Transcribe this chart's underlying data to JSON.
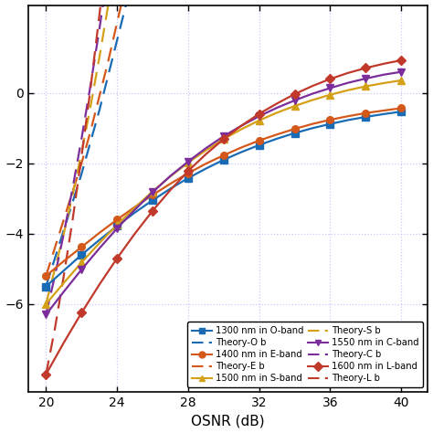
{
  "title": "",
  "xlabel": "OSNR (dB)",
  "ylabel": "",
  "xlim": [
    19.0,
    41.5
  ],
  "ylim": [
    -8.5,
    2.5
  ],
  "xticks": [
    20,
    24,
    28,
    32,
    36,
    40
  ],
  "yticks": [
    -6,
    -4,
    -2,
    0
  ],
  "grid_color": "#c8c8ff",
  "bands": [
    {
      "name": "O-band",
      "wavelength": "1300 nm",
      "color": "#1a6bb5",
      "marker": "s",
      "solid_x": [
        20,
        21,
        22,
        23,
        24,
        25,
        26,
        27,
        28,
        29,
        30,
        31,
        32,
        33,
        34,
        35,
        36,
        37,
        38,
        39,
        40
      ],
      "solid_y": [
        -5.5,
        -5.05,
        -4.6,
        -4.18,
        -3.78,
        -3.4,
        -3.05,
        -2.72,
        -2.42,
        -2.15,
        -1.9,
        -1.68,
        -1.48,
        -1.3,
        -1.14,
        -1.0,
        -0.88,
        -0.77,
        -0.68,
        -0.6,
        -0.53
      ],
      "dashed_x": [
        20,
        20.5,
        21,
        21.5,
        22,
        22.5,
        23,
        23.5,
        24,
        24.5,
        25,
        25.5,
        26,
        26.2
      ],
      "dashed_y": [
        -5.5,
        -4.7,
        -3.9,
        -3.1,
        -2.3,
        -1.4,
        -0.5,
        0.5,
        1.5,
        2.5,
        3.6,
        4.8,
        6.1,
        6.7
      ]
    },
    {
      "name": "E-band",
      "wavelength": "1400 nm",
      "color": "#d4581a",
      "marker": "o",
      "solid_x": [
        20,
        21,
        22,
        23,
        24,
        25,
        26,
        27,
        28,
        29,
        30,
        31,
        32,
        33,
        34,
        35,
        36,
        37,
        38,
        39,
        40
      ],
      "solid_y": [
        -5.2,
        -4.78,
        -4.38,
        -3.98,
        -3.6,
        -3.24,
        -2.9,
        -2.58,
        -2.28,
        -2.01,
        -1.77,
        -1.55,
        -1.35,
        -1.18,
        -1.02,
        -0.88,
        -0.76,
        -0.66,
        -0.57,
        -0.5,
        -0.43
      ],
      "dashed_x": [
        20,
        20.5,
        21,
        21.5,
        22,
        22.5,
        23,
        23.5,
        24,
        24.5,
        25,
        25.5,
        26,
        26.3
      ],
      "dashed_y": [
        -5.2,
        -4.4,
        -3.6,
        -2.8,
        -2.0,
        -1.1,
        -0.1,
        0.9,
        2.0,
        3.1,
        4.2,
        5.4,
        6.6,
        7.1
      ]
    },
    {
      "name": "S-band",
      "wavelength": "1500 nm",
      "color": "#d4a017",
      "marker": "^",
      "solid_x": [
        20,
        21,
        22,
        23,
        24,
        25,
        26,
        27,
        28,
        29,
        30,
        31,
        32,
        33,
        34,
        35,
        36,
        37,
        38,
        39,
        40
      ],
      "solid_y": [
        -6.0,
        -5.4,
        -4.82,
        -4.27,
        -3.75,
        -3.26,
        -2.8,
        -2.37,
        -1.98,
        -1.63,
        -1.31,
        -1.03,
        -0.78,
        -0.56,
        -0.37,
        -0.2,
        -0.05,
        0.08,
        0.19,
        0.28,
        0.36
      ],
      "dashed_x": [
        20,
        20.5,
        21,
        21.5,
        22,
        22.5,
        23,
        23.5,
        24,
        24.5,
        25,
        25.3
      ],
      "dashed_y": [
        -6.0,
        -5.0,
        -4.0,
        -2.9,
        -1.7,
        -0.4,
        1.0,
        2.5,
        4.1,
        5.8,
        7.5,
        8.4
      ]
    },
    {
      "name": "C-band",
      "wavelength": "1550 nm",
      "color": "#7b2d9b",
      "marker": "v",
      "solid_x": [
        20,
        21,
        22,
        23,
        24,
        25,
        26,
        27,
        28,
        29,
        30,
        31,
        32,
        33,
        34,
        35,
        36,
        37,
        38,
        39,
        40
      ],
      "solid_y": [
        -6.3,
        -5.65,
        -5.02,
        -4.42,
        -3.85,
        -3.32,
        -2.82,
        -2.36,
        -1.95,
        -1.57,
        -1.23,
        -0.93,
        -0.66,
        -0.42,
        -0.21,
        -0.02,
        0.14,
        0.29,
        0.41,
        0.52,
        0.6
      ],
      "dashed_x": [
        20,
        20.5,
        21,
        21.5,
        22,
        22.5,
        23,
        23.5,
        24,
        24.5,
        25,
        25.3
      ],
      "dashed_y": [
        -6.3,
        -5.2,
        -4.0,
        -2.7,
        -1.3,
        0.2,
        1.8,
        3.5,
        5.3,
        7.1,
        8.8,
        9.7
      ]
    },
    {
      "name": "L-band",
      "wavelength": "1600 nm",
      "color": "#c0392b",
      "marker": "D",
      "solid_x": [
        20,
        21,
        22,
        23,
        24,
        25,
        26,
        27,
        28,
        29,
        30,
        31,
        32,
        33,
        34,
        35,
        36,
        37,
        38,
        39,
        40
      ],
      "solid_y": [
        -8.0,
        -7.1,
        -6.25,
        -5.45,
        -4.7,
        -4.0,
        -3.35,
        -2.76,
        -2.22,
        -1.74,
        -1.31,
        -0.93,
        -0.59,
        -0.3,
        -0.03,
        0.2,
        0.4,
        0.57,
        0.71,
        0.83,
        0.93
      ],
      "dashed_x": [
        20,
        20.5,
        21,
        21.5,
        22,
        22.5,
        23,
        23.5,
        24,
        24.5,
        25,
        25.3
      ],
      "dashed_y": [
        -8.0,
        -6.7,
        -5.2,
        -3.6,
        -1.8,
        0.1,
        2.2,
        4.3,
        6.5,
        8.7,
        10.8,
        11.9
      ]
    }
  ],
  "legend_labels_solid": [
    "1300 nm in O-band",
    "1400 nm in E-band",
    "1500 nm in S-band",
    "1550 nm in C-band",
    "1600 nm in L-band"
  ],
  "legend_labels_dashed": [
    "Theory-O b",
    "Theory-E b",
    "Theory-S b",
    "Theory-C b",
    "Theory-L b"
  ],
  "bg_color": "#ffffff"
}
